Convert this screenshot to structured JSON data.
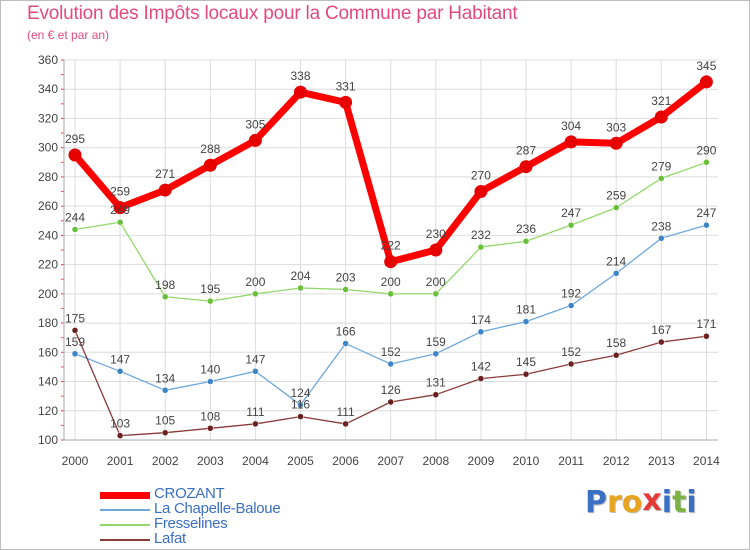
{
  "title": "Evolution des Impôts locaux pour la Commune par Habitant",
  "subtitle": "(en € et par an)",
  "logo": {
    "text": "Proxiti",
    "letters": [
      {
        "ch": "P",
        "color": "#3b6fc4"
      },
      {
        "ch": "r",
        "color": "#e8a31f"
      },
      {
        "ch": "o",
        "color": "#e8a31f"
      },
      {
        "ch": "x",
        "color": "#e53935"
      },
      {
        "ch": "i",
        "color": "#3b6fc4"
      },
      {
        "ch": "t",
        "color": "#7cb342"
      },
      {
        "ch": "i",
        "color": "#3b6fc4"
      }
    ]
  },
  "chart_data": {
    "type": "line",
    "title": "Evolution des Impôts locaux pour la Commune par Habitant",
    "subtitle": "(en € et par an)",
    "categories": [
      "2000",
      "2001",
      "2002",
      "2003",
      "2004",
      "2005",
      "2006",
      "2007",
      "2008",
      "2009",
      "2010",
      "2011",
      "2012",
      "2013",
      "2014"
    ],
    "ylim": [
      100,
      360
    ],
    "yticks": [
      100,
      120,
      140,
      160,
      180,
      200,
      220,
      240,
      260,
      280,
      300,
      320,
      340,
      360
    ],
    "grid": true,
    "legend": "bottom-left",
    "series": [
      {
        "name": "CROZANT",
        "color": "#ff0000",
        "marker": "#e60000",
        "values": [
          295,
          259,
          271,
          288,
          305,
          338,
          331,
          222,
          230,
          270,
          287,
          304,
          303,
          321,
          345
        ]
      },
      {
        "name": "La Chapelle-Baloue",
        "color": "#6fa8dc",
        "marker": "#3d85c6",
        "values": [
          159,
          147,
          134,
          140,
          147,
          124,
          166,
          152,
          159,
          174,
          181,
          192,
          214,
          238,
          247
        ]
      },
      {
        "name": "Fresselines",
        "color": "#93d86a",
        "marker": "#6abf3a",
        "values": [
          244,
          249,
          198,
          195,
          200,
          204,
          203,
          200,
          200,
          232,
          236,
          247,
          259,
          279,
          290
        ]
      },
      {
        "name": "Lafat",
        "color": "#8b3a3a",
        "marker": "#6b1f1f",
        "values": [
          175,
          103,
          105,
          108,
          111,
          116,
          111,
          126,
          131,
          142,
          145,
          152,
          158,
          167,
          171
        ]
      }
    ]
  }
}
